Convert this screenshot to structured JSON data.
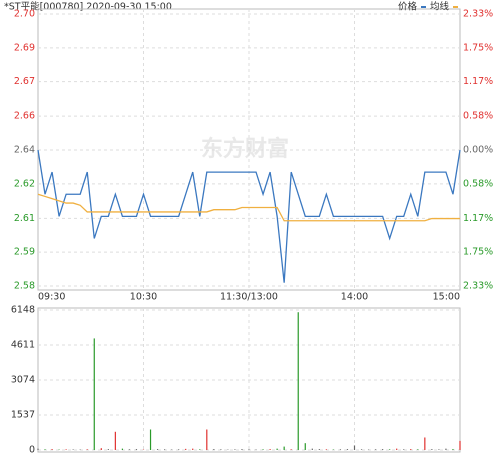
{
  "header": {
    "title": "*ST平能[000780] 2020-09-30 15:00",
    "watermark": "东方财富"
  },
  "chart_data": [
    {
      "type": "line",
      "grid": true,
      "legend": "top-right",
      "up_color": "#e0312f",
      "down_color": "#2a9a2a",
      "flat_color": "#666666",
      "categories": [
        "09:30",
        null,
        null,
        null,
        null,
        null,
        null,
        null,
        null,
        null,
        null,
        null,
        null,
        null,
        null,
        "10:30",
        null,
        null,
        null,
        null,
        null,
        null,
        null,
        null,
        null,
        null,
        null,
        null,
        null,
        null,
        "11:30/13:00",
        null,
        null,
        null,
        null,
        null,
        null,
        null,
        null,
        null,
        null,
        null,
        null,
        null,
        null,
        "14:00",
        null,
        null,
        null,
        null,
        null,
        null,
        null,
        null,
        null,
        null,
        null,
        null,
        null,
        null,
        "15:00"
      ],
      "series": [
        {
          "name": "价格",
          "color": "#3b78c0",
          "values": [
            2.64,
            2.62,
            2.63,
            2.61,
            2.62,
            2.62,
            2.62,
            2.63,
            2.6,
            2.61,
            2.61,
            2.62,
            2.61,
            2.61,
            2.61,
            2.62,
            2.61,
            2.61,
            2.61,
            2.61,
            2.61,
            2.62,
            2.63,
            2.61,
            2.63,
            2.63,
            2.63,
            2.63,
            2.63,
            2.63,
            2.63,
            2.63,
            2.62,
            2.63,
            2.61,
            2.58,
            2.63,
            2.62,
            2.61,
            2.61,
            2.61,
            2.62,
            2.61,
            2.61,
            2.61,
            2.61,
            2.61,
            2.61,
            2.61,
            2.61,
            2.6,
            2.61,
            2.61,
            2.62,
            2.61,
            2.63,
            2.63,
            2.63,
            2.63,
            2.62,
            2.64
          ]
        },
        {
          "name": "均线",
          "color": "#f0b040",
          "values": [
            2.62,
            2.619,
            2.618,
            2.617,
            2.616,
            2.616,
            2.615,
            2.612,
            2.612,
            2.612,
            2.612,
            2.612,
            2.612,
            2.612,
            2.612,
            2.612,
            2.612,
            2.612,
            2.612,
            2.612,
            2.612,
            2.612,
            2.612,
            2.612,
            2.612,
            2.613,
            2.613,
            2.613,
            2.613,
            2.614,
            2.614,
            2.614,
            2.614,
            2.614,
            2.614,
            2.608,
            2.608,
            2.608,
            2.608,
            2.608,
            2.608,
            2.608,
            2.608,
            2.608,
            2.608,
            2.608,
            2.608,
            2.608,
            2.608,
            2.608,
            2.608,
            2.608,
            2.608,
            2.608,
            2.608,
            2.608,
            2.609,
            2.609,
            2.609,
            2.609,
            2.609
          ]
        }
      ],
      "ylim": [
        2.5785,
        2.7015
      ],
      "yticks": [
        {
          "value": 2.7015,
          "label": "2.70"
        },
        {
          "value": 2.6862,
          "label": "2.69"
        },
        {
          "value": 2.6709,
          "label": "2.67"
        },
        {
          "value": 2.6553,
          "label": "2.66"
        },
        {
          "value": 2.64,
          "label": "2.64"
        },
        {
          "value": 2.6247,
          "label": "2.62"
        },
        {
          "value": 2.6091,
          "label": "2.61"
        },
        {
          "value": 2.5938,
          "label": "2.59"
        },
        {
          "value": 2.5785,
          "label": "2.58"
        }
      ],
      "y2lim": [
        -2.33,
        2.33
      ],
      "y2ticks": [
        {
          "value": 2.33,
          "label": "2.33%"
        },
        {
          "value": 1.75,
          "label": "1.75%"
        },
        {
          "value": 1.17,
          "label": "1.17%"
        },
        {
          "value": 0.58,
          "label": "0.58%"
        },
        {
          "value": 0,
          "label": "0.00%"
        },
        {
          "value": -0.58,
          "label": "0.58%"
        },
        {
          "value": -1.17,
          "label": "1.17%"
        },
        {
          "value": -1.75,
          "label": "1.75%"
        },
        {
          "value": -2.33,
          "label": "2.33%"
        }
      ]
    },
    {
      "type": "bar",
      "grid": true,
      "values": [
        60,
        30,
        40,
        20,
        30,
        25,
        20,
        30,
        4900,
        80,
        40,
        800,
        60,
        30,
        40,
        20,
        900,
        40,
        30,
        20,
        30,
        50,
        60,
        30,
        900,
        40,
        30,
        20,
        30,
        40,
        30,
        20,
        30,
        40,
        60,
        150,
        30,
        6050,
        300,
        60,
        40,
        30,
        20,
        30,
        40,
        200,
        30,
        20,
        30,
        40,
        30,
        60,
        30,
        40,
        30,
        550,
        40,
        30,
        60,
        40,
        400
      ],
      "ylim": [
        0,
        6148
      ],
      "yticks": [
        0,
        1537,
        3074,
        4611,
        6148
      ]
    }
  ]
}
